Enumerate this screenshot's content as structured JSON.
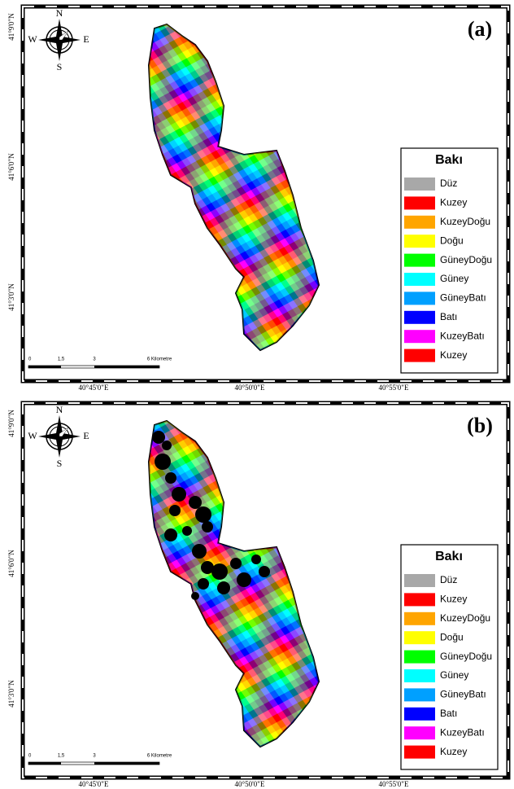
{
  "panels": [
    {
      "label": "(a)"
    },
    {
      "label": "(b)"
    }
  ],
  "compass": {
    "n": "N",
    "s": "S",
    "e": "E",
    "w": "W"
  },
  "lat_labels": [
    "41°9'0\"N",
    "41°6'0\"N",
    "41°3'0\"N"
  ],
  "lon_labels": [
    "40°45'0\"E",
    "40°50'0\"E",
    "40°55'0\"E"
  ],
  "scale_bar": {
    "ticks": [
      "0",
      "1,5",
      "3",
      "6 Kilometre"
    ]
  },
  "legend": {
    "title": "Bakı",
    "items": [
      {
        "label": "Düz",
        "color": "#a8a8a8"
      },
      {
        "label": "Kuzey",
        "color": "#ff0000"
      },
      {
        "label": "KuzeyDoğu",
        "color": "#ffa500"
      },
      {
        "label": "Doğu",
        "color": "#ffff00"
      },
      {
        "label": "GüneyDoğu",
        "color": "#00ff00"
      },
      {
        "label": "Güney",
        "color": "#00ffff"
      },
      {
        "label": "GüneyBatı",
        "color": "#00a0ff"
      },
      {
        "label": "Batı",
        "color": "#0000ff"
      },
      {
        "label": "KuzeyBatı",
        "color": "#ff00ff"
      },
      {
        "label": "Kuzey",
        "color": "#ff0000"
      }
    ]
  }
}
